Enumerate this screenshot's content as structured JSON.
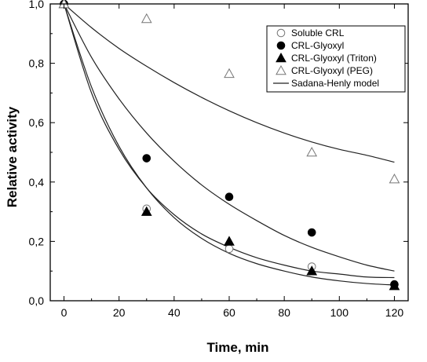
{
  "chart_data": {
    "type": "scatter",
    "title": "",
    "xlabel": "Time, min",
    "ylabel": "Relative activity",
    "xlim": [
      -5,
      125
    ],
    "ylim": [
      0.0,
      1.0
    ],
    "x_ticks": [
      "0",
      "20",
      "40",
      "60",
      "80",
      "100",
      "120"
    ],
    "y_ticks": [
      "0,0",
      "0,2",
      "0,4",
      "0,6",
      "0,8",
      "1,0"
    ],
    "grid": false,
    "legend_position": "top-right",
    "series": [
      {
        "name": "Soluble CRL",
        "marker": "open-circle",
        "x": [
          0,
          30,
          60,
          90,
          120
        ],
        "y": [
          1.0,
          0.31,
          0.175,
          0.115,
          0.055
        ]
      },
      {
        "name": "CRL-Glyoxyl",
        "marker": "filled-circle",
        "x": [
          0,
          30,
          60,
          90,
          120
        ],
        "y": [
          1.0,
          0.48,
          0.35,
          0.23,
          0.055
        ]
      },
      {
        "name": "CRL-Glyoxyl (Triton)",
        "marker": "filled-triangle",
        "x": [
          0,
          30,
          60,
          90,
          120
        ],
        "y": [
          1.0,
          0.3,
          0.2,
          0.1,
          0.05
        ]
      },
      {
        "name": "CRL-Glyoxyl (PEG)",
        "marker": "open-triangle",
        "x": [
          0,
          30,
          60,
          90,
          120
        ],
        "y": [
          1.0,
          0.95,
          0.765,
          0.5,
          0.41
        ]
      }
    ],
    "model_legend": "Sadana-Henly model",
    "model_curves": [
      {
        "x": [
          0,
          10,
          20,
          30,
          40,
          50,
          60,
          70,
          80,
          90,
          100,
          110,
          120
        ],
        "y": [
          1.0,
          0.7,
          0.51,
          0.38,
          0.29,
          0.225,
          0.18,
          0.145,
          0.12,
          0.1,
          0.09,
          0.08,
          0.078
        ]
      },
      {
        "x": [
          0,
          10,
          20,
          30,
          40,
          50,
          60,
          70,
          80,
          90,
          100,
          110,
          120
        ],
        "y": [
          1.0,
          0.72,
          0.52,
          0.38,
          0.28,
          0.21,
          0.16,
          0.125,
          0.1,
          0.08,
          0.067,
          0.058,
          0.053
        ]
      },
      {
        "x": [
          0,
          10,
          20,
          30,
          40,
          50,
          60,
          70,
          80,
          90,
          100,
          110,
          120
        ],
        "y": [
          1.0,
          0.82,
          0.68,
          0.565,
          0.47,
          0.39,
          0.325,
          0.27,
          0.22,
          0.18,
          0.148,
          0.12,
          0.1
        ]
      },
      {
        "x": [
          0,
          10,
          20,
          30,
          40,
          50,
          60,
          70,
          80,
          90,
          100,
          110,
          120
        ],
        "y": [
          1.0,
          0.92,
          0.85,
          0.79,
          0.735,
          0.685,
          0.64,
          0.6,
          0.565,
          0.535,
          0.51,
          0.49,
          0.467
        ]
      }
    ]
  }
}
